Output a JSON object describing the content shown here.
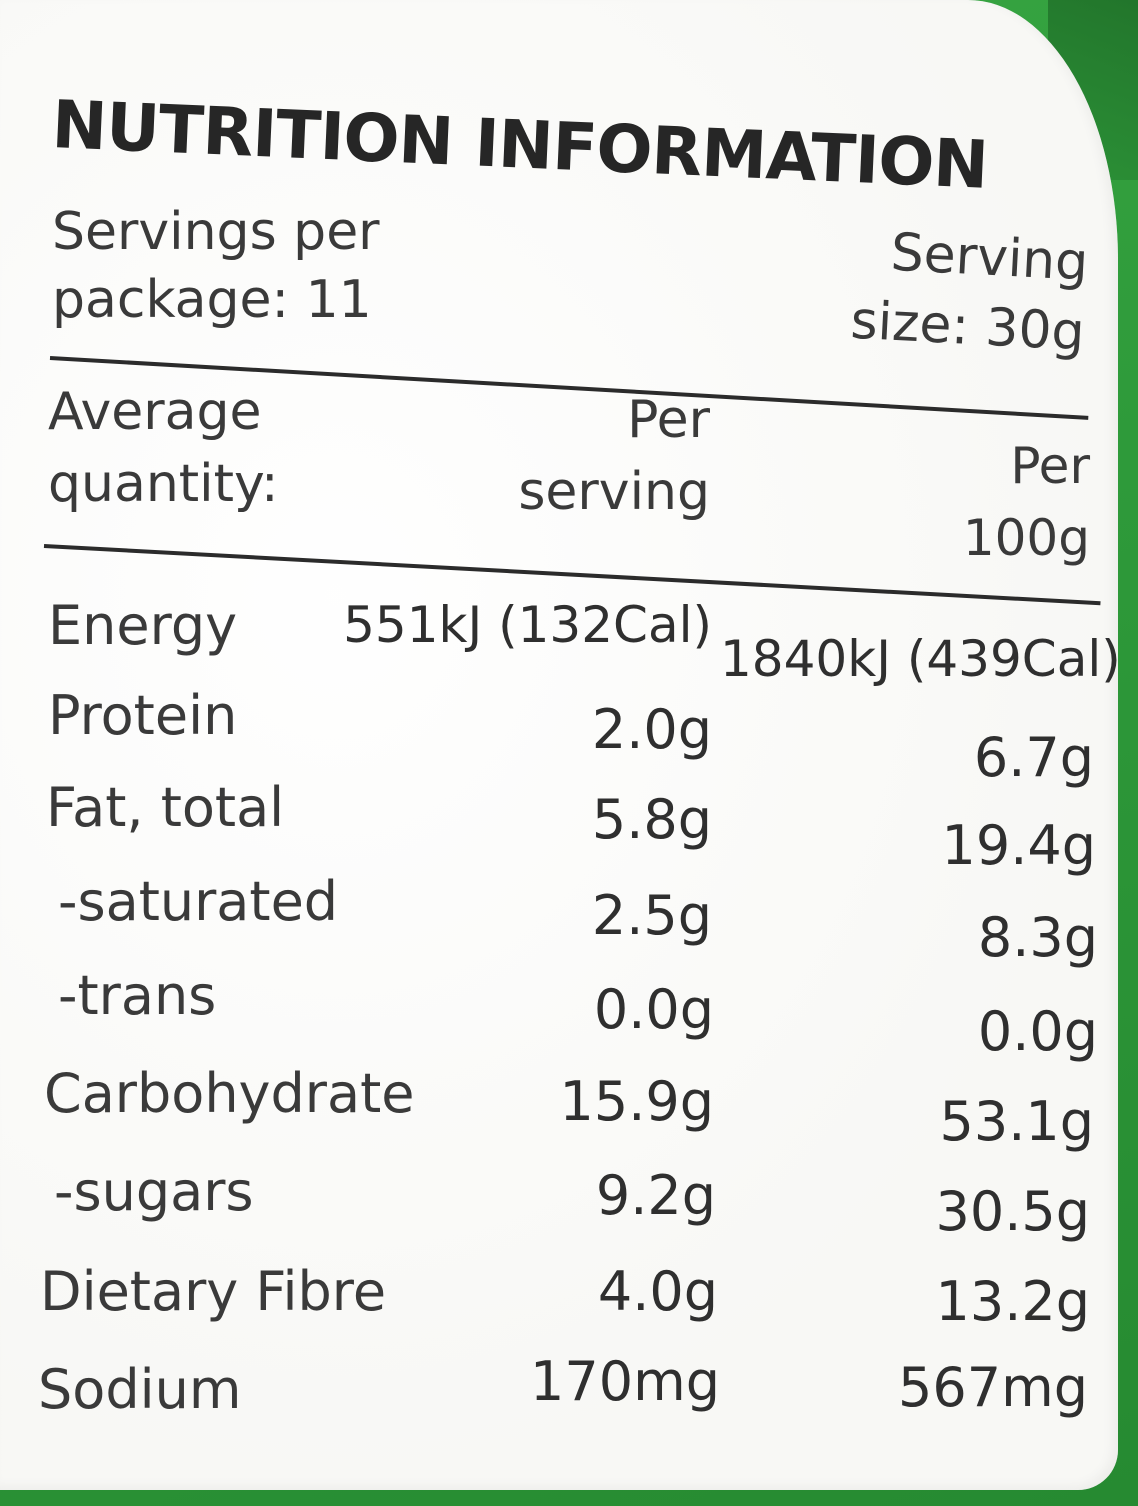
{
  "panel": {
    "title": "NUTRITION INFORMATION",
    "servings_per_package": "Servings per package: 11",
    "serving_size": "Serving size: 30g"
  },
  "header": {
    "average_quantity": "Average quantity:",
    "per_serving": "Per serving",
    "per_100g": "Per 100g"
  },
  "rows": [
    {
      "label": "Energy",
      "per_serving": "551kJ (132Cal)",
      "per_100g": "1840kJ (439Cal)"
    },
    {
      "label": "Protein",
      "per_serving": "2.0g",
      "per_100g": "6.7g"
    },
    {
      "label": "Fat, total",
      "per_serving": "5.8g",
      "per_100g": "19.4g"
    },
    {
      "label": "-saturated",
      "per_serving": "2.5g",
      "per_100g": "8.3g"
    },
    {
      "label": "-trans",
      "per_serving": "0.0g",
      "per_100g": "0.0g"
    },
    {
      "label": "Carbohydrate",
      "per_serving": "15.9g",
      "per_100g": "53.1g"
    },
    {
      "label": "-sugars",
      "per_serving": "9.2g",
      "per_100g": "30.5g"
    },
    {
      "label": "Dietary Fibre",
      "per_serving": "4.0g",
      "per_100g": "13.2g"
    },
    {
      "label": "Sodium",
      "per_serving": "170mg",
      "per_100g": "567mg"
    }
  ],
  "colors": {
    "packaging": "#2e9a3a",
    "label_background": "#fbfbf9",
    "text": "#2b2b2b"
  }
}
